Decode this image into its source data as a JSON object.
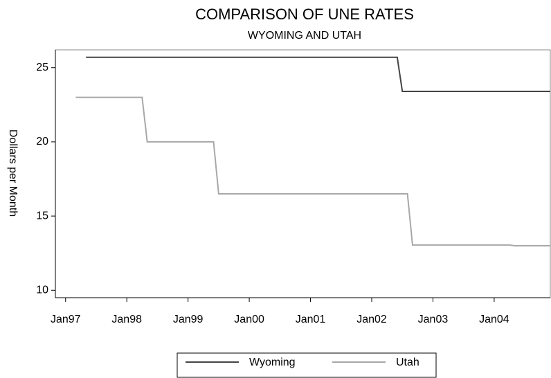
{
  "chart_data": {
    "type": "line",
    "title": "COMPARISON OF UNE RATES",
    "subtitle": "WYOMING AND UTAH",
    "y_label": "Dollars per Month",
    "xlim": [
      "Nov96",
      "Dec04"
    ],
    "xticks": [
      "Jan97",
      "Jan98",
      "Jan99",
      "Jan00",
      "Jan01",
      "Jan02",
      "Jan03",
      "Jan04"
    ],
    "ylim": [
      9.5,
      26.2
    ],
    "yticks": [
      10,
      15,
      20,
      25
    ],
    "series": [
      {
        "name": "Wyoming",
        "color": "#444444",
        "x": [
          "May97",
          "Jun02",
          "Jul02",
          "Dec04"
        ],
        "values": [
          25.7,
          25.7,
          23.4,
          23.4
        ]
      },
      {
        "name": "Utah",
        "color": "#a8a8a8",
        "x": [
          "Mar97",
          "Apr98",
          "May98",
          "Jun99",
          "Jul99",
          "Aug02",
          "Sep02",
          "Apr04",
          "May04",
          "Dec04"
        ],
        "values": [
          23,
          23,
          20,
          20,
          16.5,
          16.5,
          13.05,
          13.05,
          13.0,
          13.0
        ]
      }
    ]
  }
}
